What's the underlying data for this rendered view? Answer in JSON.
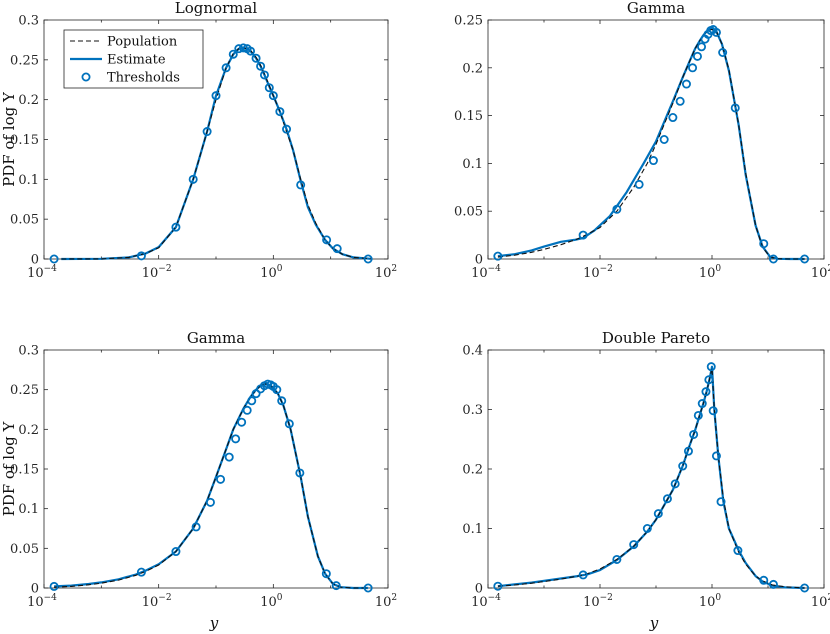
{
  "chart_data": [
    {
      "type": "line",
      "title": "Lognormal",
      "xlabel": "",
      "ylabel": "PDF of log Y",
      "xscale": "log",
      "xlim": [
        0.0001,
        100
      ],
      "ylim": [
        0,
        0.3
      ],
      "xticks": [
        0.0001,
        0.01,
        1,
        100
      ],
      "xtick_labels": [
        {
          "base": "10",
          "exp": "−4"
        },
        {
          "base": "10",
          "exp": "−2"
        },
        {
          "base": "10",
          "exp": "0"
        },
        {
          "base": "10",
          "exp": "2"
        }
      ],
      "yticks": [
        0,
        0.05,
        0.1,
        0.15,
        0.2,
        0.25,
        0.3
      ],
      "ytick_labels": [
        "0",
        "0.05",
        "0.1",
        "0.15",
        "0.2",
        "0.25",
        "0.3"
      ],
      "legend": {
        "placement": "top-left",
        "entries": [
          "Population",
          "Estimate",
          "Thresholds"
        ]
      },
      "series": [
        {
          "name": "Population",
          "style": "dashed",
          "x": [
            0.0002,
            0.001,
            0.003,
            0.006,
            0.01,
            0.02,
            0.04,
            0.07,
            0.1,
            0.15,
            0.2,
            0.25,
            0.3,
            0.35,
            0.4,
            0.5,
            0.6,
            0.7,
            0.8,
            1,
            1.3,
            1.7,
            2.2,
            3,
            4,
            5.5,
            8,
            11,
            16,
            25,
            50
          ],
          "y": [
            0,
            0.0001,
            0.002,
            0.007,
            0.014,
            0.04,
            0.1,
            0.16,
            0.2,
            0.24,
            0.258,
            0.264,
            0.265,
            0.264,
            0.262,
            0.253,
            0.243,
            0.232,
            0.222,
            0.205,
            0.185,
            0.16,
            0.137,
            0.1,
            0.068,
            0.045,
            0.024,
            0.013,
            0.006,
            0.002,
            0.0002
          ]
        },
        {
          "name": "Estimate",
          "style": "solid",
          "x": [
            0.0002,
            0.001,
            0.003,
            0.006,
            0.01,
            0.02,
            0.04,
            0.07,
            0.1,
            0.15,
            0.2,
            0.25,
            0.3,
            0.35,
            0.4,
            0.5,
            0.6,
            0.7,
            0.8,
            1,
            1.3,
            1.7,
            2.2,
            3,
            4,
            5.5,
            8,
            11,
            16,
            25,
            50
          ],
          "y": [
            0,
            0.0002,
            0.002,
            0.007,
            0.015,
            0.04,
            0.1,
            0.16,
            0.205,
            0.24,
            0.257,
            0.264,
            0.265,
            0.264,
            0.261,
            0.252,
            0.242,
            0.231,
            0.221,
            0.205,
            0.185,
            0.163,
            0.137,
            0.098,
            0.065,
            0.043,
            0.024,
            0.013,
            0.006,
            0.002,
            0.0003
          ]
        },
        {
          "name": "Thresholds",
          "style": "markers",
          "x": [
            0.00015,
            0.005,
            0.02,
            0.04,
            0.07,
            0.1,
            0.15,
            0.2,
            0.25,
            0.3,
            0.35,
            0.4,
            0.5,
            0.6,
            0.7,
            0.85,
            1.0,
            1.3,
            1.7,
            3.0,
            8.5,
            13,
            45
          ],
          "y": [
            0.0,
            0.004,
            0.04,
            0.1,
            0.16,
            0.205,
            0.24,
            0.257,
            0.264,
            0.265,
            0.264,
            0.261,
            0.252,
            0.242,
            0.231,
            0.215,
            0.205,
            0.185,
            0.163,
            0.093,
            0.024,
            0.013,
            0.0
          ]
        }
      ]
    },
    {
      "type": "line",
      "title": "Gamma",
      "xlabel": "",
      "ylabel": "",
      "xscale": "log",
      "xlim": [
        0.0001,
        100
      ],
      "ylim": [
        0,
        0.25
      ],
      "xticks": [
        0.0001,
        0.01,
        1,
        100
      ],
      "xtick_labels": [
        {
          "base": "10",
          "exp": "−4"
        },
        {
          "base": "10",
          "exp": "−2"
        },
        {
          "base": "10",
          "exp": "0"
        },
        {
          "base": "10",
          "exp": "2"
        }
      ],
      "yticks": [
        0,
        0.05,
        0.1,
        0.15,
        0.2,
        0.25
      ],
      "ytick_labels": [
        "0",
        "0.05",
        "0.1",
        "0.15",
        "0.2",
        "0.25"
      ],
      "series": [
        {
          "name": "Population",
          "style": "dashed",
          "x": [
            0.00015,
            0.0003,
            0.0006,
            0.001,
            0.002,
            0.004,
            0.006,
            0.01,
            0.02,
            0.04,
            0.07,
            0.1,
            0.2,
            0.3,
            0.4,
            0.5,
            0.6,
            0.7,
            0.8,
            0.9,
            1.0,
            1.2,
            1.5,
            2,
            3,
            4,
            6,
            8,
            11,
            15,
            25,
            45
          ],
          "y": [
            0.002,
            0.004,
            0.007,
            0.01,
            0.015,
            0.021,
            0.026,
            0.033,
            0.05,
            0.075,
            0.1,
            0.12,
            0.163,
            0.19,
            0.207,
            0.22,
            0.228,
            0.234,
            0.238,
            0.24,
            0.24,
            0.238,
            0.225,
            0.198,
            0.14,
            0.09,
            0.035,
            0.012,
            0.002,
            0.0003,
            0,
            0
          ]
        },
        {
          "name": "Estimate",
          "style": "solid",
          "x": [
            0.00015,
            0.0003,
            0.0006,
            0.001,
            0.002,
            0.0035,
            0.005,
            0.008,
            0.015,
            0.03,
            0.06,
            0.1,
            0.2,
            0.3,
            0.4,
            0.5,
            0.6,
            0.7,
            0.8,
            0.9,
            1.0,
            1.2,
            1.5,
            2,
            3,
            4,
            6,
            8,
            11,
            15,
            25,
            45
          ],
          "y": [
            0.003,
            0.005,
            0.009,
            0.013,
            0.018,
            0.02,
            0.022,
            0.03,
            0.045,
            0.07,
            0.1,
            0.123,
            0.165,
            0.19,
            0.207,
            0.22,
            0.228,
            0.234,
            0.238,
            0.24,
            0.241,
            0.238,
            0.225,
            0.197,
            0.14,
            0.088,
            0.035,
            0.013,
            0.002,
            0.0002,
            0,
            0
          ]
        },
        {
          "name": "Thresholds",
          "style": "markers",
          "x": [
            0.00015,
            0.005,
            0.02,
            0.05,
            0.09,
            0.14,
            0.2,
            0.27,
            0.35,
            0.45,
            0.55,
            0.65,
            0.75,
            0.85,
            0.95,
            1.05,
            1.2,
            1.55,
            2.6,
            8.4,
            12.5,
            45
          ],
          "y": [
            0.003,
            0.025,
            0.052,
            0.078,
            0.103,
            0.125,
            0.148,
            0.165,
            0.183,
            0.2,
            0.212,
            0.222,
            0.23,
            0.235,
            0.239,
            0.24,
            0.237,
            0.216,
            0.158,
            0.016,
            0.0,
            0.0
          ]
        }
      ]
    },
    {
      "type": "line",
      "title": "Gamma",
      "xlabel": "y",
      "ylabel": "PDF of log Y",
      "xscale": "log",
      "xlim": [
        0.0001,
        100
      ],
      "ylim": [
        0,
        0.3
      ],
      "xticks": [
        0.0001,
        0.01,
        1,
        100
      ],
      "xtick_labels": [
        {
          "base": "10",
          "exp": "−4"
        },
        {
          "base": "10",
          "exp": "−2"
        },
        {
          "base": "10",
          "exp": "0"
        },
        {
          "base": "10",
          "exp": "2"
        }
      ],
      "yticks": [
        0,
        0.05,
        0.1,
        0.15,
        0.2,
        0.25,
        0.3
      ],
      "ytick_labels": [
        "0",
        "0.05",
        "0.1",
        "0.15",
        "0.2",
        "0.25",
        "0.3"
      ],
      "series": [
        {
          "name": "Population",
          "style": "dashed",
          "x": [
            0.00015,
            0.0003,
            0.0006,
            0.001,
            0.002,
            0.004,
            0.006,
            0.01,
            0.02,
            0.04,
            0.07,
            0.1,
            0.15,
            0.2,
            0.3,
            0.4,
            0.5,
            0.6,
            0.7,
            0.8,
            0.9,
            1.0,
            1.2,
            1.5,
            2,
            3,
            4,
            6,
            8,
            11,
            15,
            25,
            45
          ],
          "y": [
            0.001,
            0.002,
            0.004,
            0.006,
            0.01,
            0.016,
            0.021,
            0.029,
            0.046,
            0.075,
            0.11,
            0.14,
            0.175,
            0.2,
            0.226,
            0.241,
            0.25,
            0.255,
            0.257,
            0.257,
            0.255,
            0.252,
            0.245,
            0.23,
            0.2,
            0.14,
            0.09,
            0.04,
            0.018,
            0.005,
            0.001,
            0,
            0
          ]
        },
        {
          "name": "Estimate",
          "style": "solid",
          "x": [
            0.00015,
            0.0003,
            0.0006,
            0.001,
            0.002,
            0.004,
            0.006,
            0.01,
            0.02,
            0.04,
            0.07,
            0.1,
            0.15,
            0.2,
            0.3,
            0.4,
            0.5,
            0.6,
            0.7,
            0.8,
            0.9,
            1.0,
            1.2,
            1.5,
            2,
            3,
            4,
            6,
            8,
            11,
            15,
            25,
            45
          ],
          "y": [
            0.002,
            0.003,
            0.005,
            0.007,
            0.011,
            0.017,
            0.022,
            0.03,
            0.046,
            0.075,
            0.11,
            0.14,
            0.175,
            0.2,
            0.226,
            0.241,
            0.25,
            0.255,
            0.257,
            0.257,
            0.255,
            0.252,
            0.245,
            0.23,
            0.2,
            0.14,
            0.09,
            0.04,
            0.018,
            0.005,
            0.001,
            0,
            0
          ]
        },
        {
          "name": "Thresholds",
          "style": "markers",
          "x": [
            0.00015,
            0.005,
            0.02,
            0.045,
            0.08,
            0.12,
            0.17,
            0.22,
            0.28,
            0.35,
            0.42,
            0.5,
            0.6,
            0.7,
            0.8,
            0.9,
            1.0,
            1.15,
            1.4,
            1.9,
            2.9,
            8.4,
            12.5,
            45
          ],
          "y": [
            0.002,
            0.02,
            0.046,
            0.077,
            0.108,
            0.137,
            0.165,
            0.188,
            0.209,
            0.224,
            0.236,
            0.245,
            0.251,
            0.255,
            0.257,
            0.256,
            0.254,
            0.25,
            0.236,
            0.207,
            0.145,
            0.018,
            0.003,
            0.0
          ]
        }
      ]
    },
    {
      "type": "line",
      "title": "Double Pareto",
      "xlabel": "y",
      "ylabel": "",
      "xscale": "log",
      "xlim": [
        0.0001,
        100
      ],
      "ylim": [
        0,
        0.4
      ],
      "xticks": [
        0.0001,
        0.01,
        1,
        100
      ],
      "xtick_labels": [
        {
          "base": "10",
          "exp": "−4"
        },
        {
          "base": "10",
          "exp": "−2"
        },
        {
          "base": "10",
          "exp": "0"
        },
        {
          "base": "10",
          "exp": "2"
        }
      ],
      "yticks": [
        0,
        0.1,
        0.2,
        0.3,
        0.4
      ],
      "ytick_labels": [
        "0",
        "0.1",
        "0.2",
        "0.3",
        "0.4"
      ],
      "series": [
        {
          "name": "Population",
          "style": "dashed",
          "x": [
            0.00015,
            0.0003,
            0.0006,
            0.001,
            0.002,
            0.004,
            0.006,
            0.01,
            0.02,
            0.04,
            0.07,
            0.1,
            0.2,
            0.3,
            0.4,
            0.5,
            0.6,
            0.7,
            0.8,
            0.9,
            1.0,
            1.1,
            1.3,
            1.6,
            2,
            3,
            4,
            6,
            8,
            12,
            20,
            45
          ],
          "y": [
            0.003,
            0.005,
            0.008,
            0.011,
            0.015,
            0.02,
            0.024,
            0.032,
            0.048,
            0.07,
            0.095,
            0.115,
            0.165,
            0.205,
            0.24,
            0.265,
            0.29,
            0.31,
            0.33,
            0.35,
            0.37,
            0.3,
            0.22,
            0.15,
            0.1,
            0.06,
            0.04,
            0.02,
            0.012,
            0.005,
            0.002,
            0
          ]
        },
        {
          "name": "Estimate",
          "style": "solid",
          "x": [
            0.00015,
            0.0003,
            0.0006,
            0.001,
            0.002,
            0.004,
            0.006,
            0.01,
            0.02,
            0.04,
            0.07,
            0.1,
            0.2,
            0.3,
            0.4,
            0.5,
            0.6,
            0.7,
            0.8,
            0.9,
            1.0,
            1.1,
            1.3,
            1.6,
            2,
            3,
            4,
            6,
            8,
            12,
            20,
            45
          ],
          "y": [
            0.003,
            0.006,
            0.009,
            0.012,
            0.016,
            0.02,
            0.023,
            0.03,
            0.047,
            0.07,
            0.095,
            0.115,
            0.165,
            0.205,
            0.24,
            0.265,
            0.29,
            0.31,
            0.33,
            0.35,
            0.372,
            0.3,
            0.22,
            0.145,
            0.1,
            0.063,
            0.042,
            0.02,
            0.011,
            0.004,
            0.001,
            0
          ]
        },
        {
          "name": "Thresholds",
          "style": "markers",
          "x": [
            0.00015,
            0.005,
            0.02,
            0.04,
            0.07,
            0.11,
            0.16,
            0.22,
            0.3,
            0.38,
            0.47,
            0.57,
            0.67,
            0.78,
            0.88,
            0.97,
            1.05,
            1.2,
            1.45,
            2.9,
            8.4,
            12.5,
            45
          ],
          "y": [
            0.003,
            0.022,
            0.048,
            0.073,
            0.1,
            0.125,
            0.15,
            0.175,
            0.205,
            0.23,
            0.258,
            0.29,
            0.31,
            0.33,
            0.35,
            0.372,
            0.298,
            0.222,
            0.145,
            0.063,
            0.013,
            0.006,
            0.0
          ]
        }
      ]
    }
  ]
}
